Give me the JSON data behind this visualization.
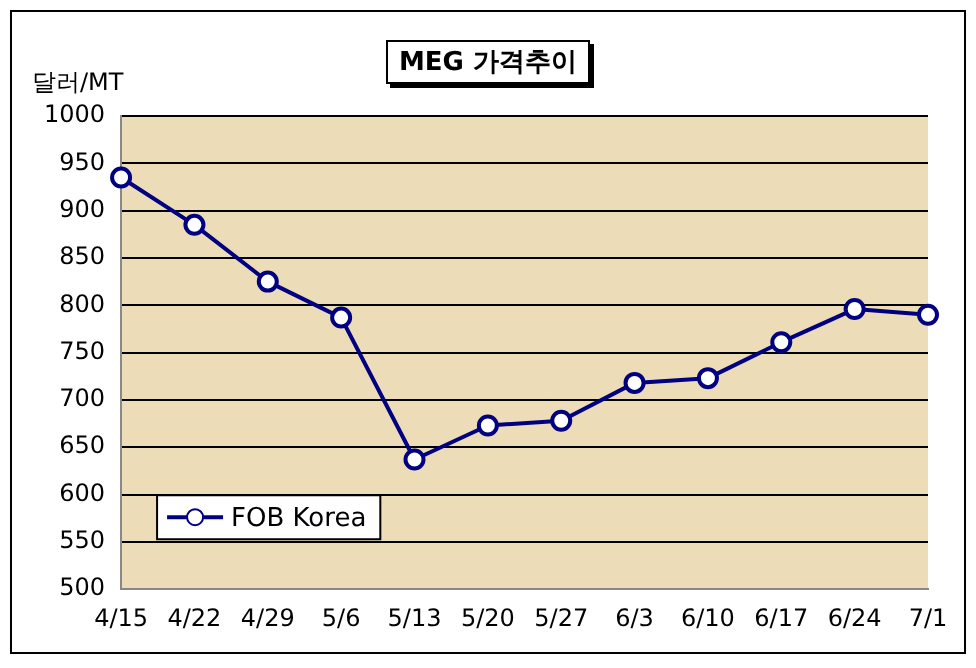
{
  "chart_data": {
    "type": "line",
    "title": "MEG 가격추이",
    "ylabel": "달러/MT",
    "categories": [
      "4/15",
      "4/22",
      "4/29",
      "5/6",
      "5/13",
      "5/20",
      "5/27",
      "6/3",
      "6/10",
      "6/17",
      "6/24",
      "7/1"
    ],
    "series": [
      {
        "name": "FOB Korea",
        "color": "#000080",
        "values": [
          935,
          885,
          825,
          787,
          637,
          673,
          678,
          718,
          723,
          761,
          796,
          790
        ]
      }
    ],
    "ylim": [
      500,
      1000
    ],
    "yticks": [
      500,
      550,
      600,
      650,
      700,
      750,
      800,
      850,
      900,
      950,
      1000
    ],
    "grid": "y",
    "legend": "bottom left",
    "marker": "circle",
    "line_style": "solid"
  }
}
